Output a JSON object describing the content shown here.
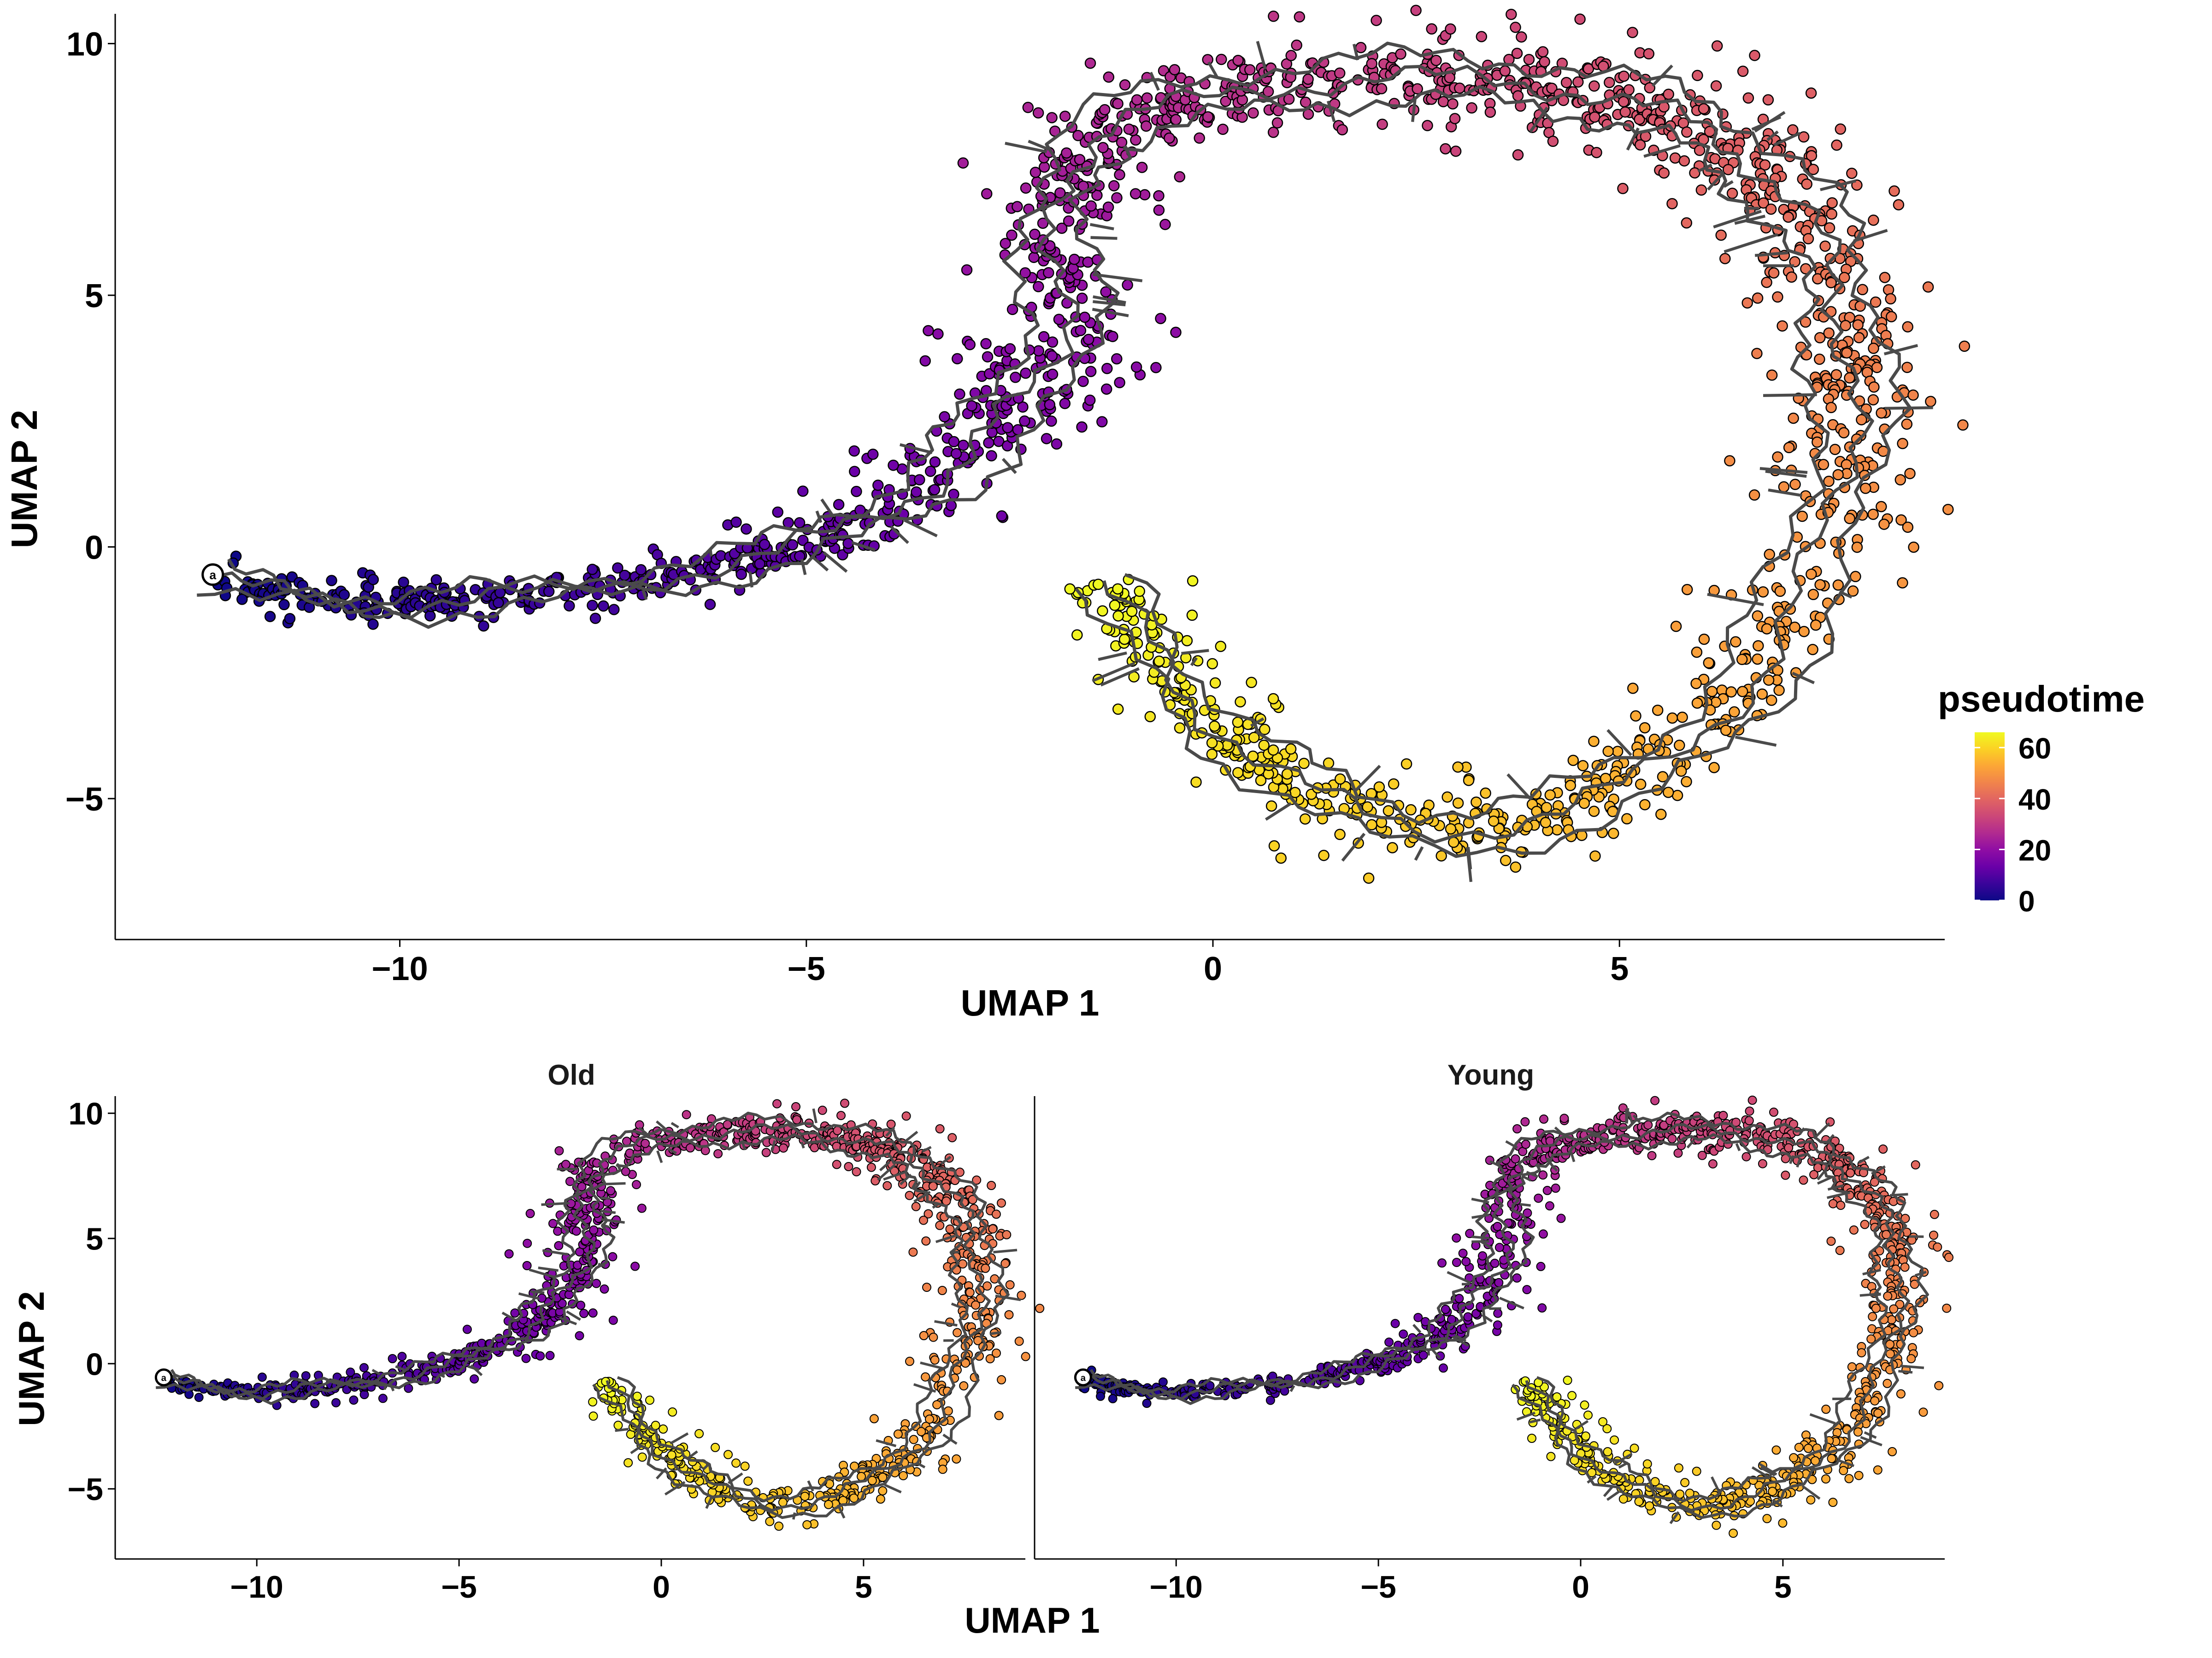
{
  "colors": {
    "scale": [
      "#0d0887",
      "#3a049a",
      "#6a00a8",
      "#8f0da4",
      "#b12a90",
      "#cc4778",
      "#e16462",
      "#f1844b",
      "#fca636",
      "#fbd124",
      "#f0f921"
    ],
    "trajectory": "#4a4a4a",
    "root_marker": "#000000"
  },
  "chart_data": [
    {
      "panel": "main",
      "type": "scatter",
      "title": "",
      "xlabel": "UMAP 1",
      "ylabel": "UMAP 2",
      "xlim": [
        -13.5,
        9.0
      ],
      "ylim": [
        -7.8,
        10.5
      ],
      "x_ticks": [
        -10,
        -5,
        0,
        5
      ],
      "y_ticks": [
        -5,
        0,
        5,
        10
      ],
      "x_tick_labels": [
        "−10",
        "−5",
        "0",
        "5"
      ],
      "y_tick_labels": [
        "−5",
        "0",
        "5",
        "10"
      ],
      "color_variable": "pseudotime",
      "color_range": [
        0,
        66
      ],
      "grid": false,
      "root_node": {
        "label": "a",
        "x": -12.3,
        "y": -0.55
      }
    },
    {
      "panel": "Old",
      "type": "scatter",
      "title": "Old",
      "xlabel": "UMAP 1",
      "ylabel": "UMAP 2",
      "xlim": [
        -13.5,
        9.0
      ],
      "ylim": [
        -7.8,
        10.5
      ],
      "x_ticks": [
        -10,
        -5,
        0,
        5
      ],
      "y_ticks": [
        -5,
        0,
        5,
        10
      ],
      "x_tick_labels": [
        "−10",
        "−5",
        "0",
        "5"
      ],
      "y_tick_labels": [
        "−5",
        "0",
        "5",
        "10"
      ],
      "color_variable": "pseudotime",
      "grid": false,
      "root_node": {
        "label": "a",
        "x": -12.3,
        "y": -0.55
      }
    },
    {
      "panel": "Young",
      "type": "scatter",
      "title": "Young",
      "xlabel": "UMAP 1",
      "ylabel": "UMAP 2",
      "xlim": [
        -13.5,
        9.0
      ],
      "ylim": [
        -7.8,
        10.5
      ],
      "x_ticks": [
        -10,
        -5,
        0,
        5
      ],
      "y_ticks": [
        -5,
        0,
        5
      ],
      "x_tick_labels": [
        "−10",
        "−5",
        "0",
        "5"
      ],
      "y_tick_labels": [
        "−5",
        "0",
        "5"
      ],
      "color_variable": "pseudotime",
      "grid": false,
      "root_node": {
        "label": "a",
        "x": -12.3,
        "y": -0.55
      }
    }
  ],
  "legend": {
    "title": "pseudotime",
    "ticks": [
      0,
      20,
      40,
      60
    ],
    "tick_labels": [
      "0",
      "20",
      "40",
      "60"
    ],
    "range": [
      0,
      66
    ],
    "placement": "right"
  },
  "shared_labels": {
    "bottom_xlabel": "UMAP 1",
    "bottom_ylabel": "UMAP 2"
  }
}
